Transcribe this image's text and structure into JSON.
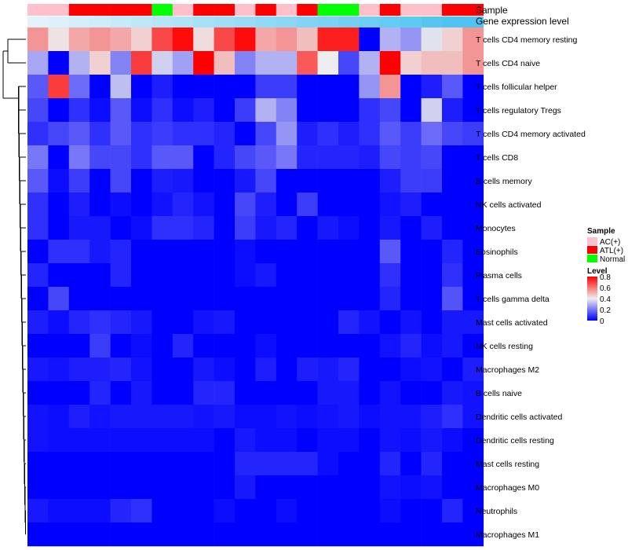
{
  "chart_data": {
    "type": "heatmap",
    "title": "",
    "annotation_labels": [
      "Sample",
      "Gene expression level"
    ],
    "sample_groups": [
      "AC(+)",
      "AC(+)",
      "ATL(+)",
      "ATL(+)",
      "ATL(+)",
      "ATL(+)",
      "Normal",
      "AC(+)",
      "ATL(+)",
      "ATL(+)",
      "AC(+)",
      "ATL(+)",
      "AC(+)",
      "ATL(+)",
      "Normal",
      "Normal",
      "AC(+)",
      "ATL(+)",
      "AC(+)",
      "AC(+)",
      "ATL(+)",
      "ATL(+)"
    ],
    "gene_expression_level": [
      0.0,
      0.05,
      0.1,
      0.15,
      0.2,
      0.25,
      0.3,
      0.35,
      0.4,
      0.45,
      0.5,
      0.55,
      0.6,
      0.65,
      0.7,
      0.75,
      0.8,
      0.85,
      0.9,
      0.95,
      1.0,
      1.0
    ],
    "rows": [
      "T cells CD4 memory resting",
      "T cells CD4 naive",
      "T cells follicular helper",
      "T cells regulatory  Tregs",
      "T cells CD4 memory activated",
      "T cells CD8",
      "B cells memory",
      "NK cells activated",
      "Monocytes",
      "Eosinophils",
      "Plasma cells",
      "T cells gamma delta",
      "Mast cells activated",
      "NK cells resting",
      "Macrophages M2",
      "B cells naive",
      "Dendritic cells activated",
      "Dendritic cells resting",
      "Mast cells resting",
      "Macrophages M0",
      "Neutrophils",
      "Macrophages M1"
    ],
    "values": [
      [
        0.55,
        0.42,
        0.52,
        0.55,
        0.52,
        0.45,
        0.68,
        0.78,
        0.43,
        0.68,
        0.78,
        0.52,
        0.55,
        0.48,
        0.75,
        0.75,
        0.0,
        0.3,
        0.25,
        0.38,
        0.45,
        0.55
      ],
      [
        0.28,
        0.0,
        0.3,
        0.45,
        0.22,
        0.7,
        0.35,
        0.27,
        0.8,
        0.48,
        0.22,
        0.3,
        0.3,
        0.65,
        0.4,
        0.12,
        0.3,
        0.8,
        0.45,
        0.48,
        0.48,
        0.55
      ],
      [
        0.15,
        0.7,
        0.18,
        0.0,
        0.32,
        0.0,
        0.05,
        0.0,
        0.0,
        0.0,
        0.0,
        0.1,
        0.1,
        0.0,
        0.0,
        0.0,
        0.25,
        0.55,
        0.0,
        0.05,
        0.15,
        0.0
      ],
      [
        0.12,
        0.0,
        0.08,
        0.02,
        0.15,
        0.02,
        0.08,
        0.02,
        0.05,
        0.0,
        0.1,
        0.3,
        0.22,
        0.0,
        0.0,
        0.0,
        0.08,
        0.12,
        0.0,
        0.35,
        0.05,
        0.0
      ],
      [
        0.08,
        0.12,
        0.15,
        0.08,
        0.15,
        0.08,
        0.1,
        0.08,
        0.08,
        0.06,
        0.0,
        0.12,
        0.25,
        0.05,
        0.08,
        0.05,
        0.08,
        0.15,
        0.1,
        0.18,
        0.12,
        0.1
      ],
      [
        0.2,
        0.0,
        0.2,
        0.12,
        0.12,
        0.08,
        0.15,
        0.15,
        0.0,
        0.06,
        0.12,
        0.15,
        0.2,
        0.06,
        0.06,
        0.06,
        0.05,
        0.12,
        0.1,
        0.12,
        0.0,
        0.0
      ],
      [
        0.15,
        0.02,
        0.1,
        0.0,
        0.12,
        0.0,
        0.05,
        0.04,
        0.0,
        0.0,
        0.04,
        0.12,
        0.0,
        0.0,
        0.0,
        0.0,
        0.0,
        0.05,
        0.1,
        0.1,
        0.0,
        0.0
      ],
      [
        0.08,
        0.0,
        0.05,
        0.0,
        0.02,
        0.0,
        0.03,
        0.06,
        0.03,
        0.0,
        0.12,
        0.05,
        0.0,
        0.1,
        0.0,
        0.0,
        0.0,
        0.03,
        0.05,
        0.0,
        0.0,
        0.0
      ],
      [
        0.08,
        0.0,
        0.04,
        0.04,
        0.0,
        0.02,
        0.08,
        0.08,
        0.06,
        0.0,
        0.1,
        0.04,
        0.06,
        0.0,
        0.04,
        0.02,
        0.0,
        0.04,
        0.0,
        0.05,
        0.0,
        0.0
      ],
      [
        0.0,
        0.08,
        0.08,
        0.04,
        0.06,
        0.0,
        0.0,
        0.0,
        0.0,
        0.0,
        0.02,
        0.0,
        0.0,
        0.0,
        0.0,
        0.0,
        0.0,
        0.15,
        0.0,
        0.0,
        0.06,
        0.0
      ],
      [
        0.06,
        0.0,
        0.0,
        0.0,
        0.06,
        0.0,
        0.0,
        0.0,
        0.0,
        0.0,
        0.02,
        0.04,
        0.0,
        0.0,
        0.0,
        0.0,
        0.0,
        0.08,
        0.0,
        0.0,
        0.08,
        0.0
      ],
      [
        0.0,
        0.12,
        0.0,
        0.0,
        0.0,
        0.0,
        0.0,
        0.0,
        0.0,
        0.0,
        0.0,
        0.0,
        0.0,
        0.0,
        0.0,
        0.0,
        0.0,
        0.06,
        0.0,
        0.0,
        0.14,
        0.0
      ],
      [
        0.05,
        0.02,
        0.06,
        0.08,
        0.06,
        0.04,
        0.0,
        0.0,
        0.03,
        0.04,
        0.0,
        0.0,
        0.0,
        0.0,
        0.0,
        0.06,
        0.03,
        0.0,
        0.03,
        0.0,
        0.04,
        0.04
      ],
      [
        0.0,
        0.0,
        0.0,
        0.1,
        0.0,
        0.02,
        0.0,
        0.06,
        0.0,
        0.0,
        0.0,
        0.02,
        0.0,
        0.0,
        0.0,
        0.0,
        0.0,
        0.03,
        0.06,
        0.02,
        0.04,
        0.0
      ],
      [
        0.04,
        0.03,
        0.05,
        0.05,
        0.06,
        0.03,
        0.0,
        0.0,
        0.04,
        0.02,
        0.0,
        0.05,
        0.0,
        0.05,
        0.04,
        0.06,
        0.0,
        0.0,
        0.02,
        0.03,
        0.0,
        0.05
      ],
      [
        0.0,
        0.0,
        0.0,
        0.06,
        0.0,
        0.04,
        0.0,
        0.0,
        0.06,
        0.06,
        0.0,
        0.0,
        0.0,
        0.0,
        0.04,
        0.04,
        0.0,
        0.03,
        0.0,
        0.0,
        0.04,
        0.03
      ],
      [
        0.03,
        0.02,
        0.05,
        0.03,
        0.04,
        0.04,
        0.04,
        0.04,
        0.03,
        0.04,
        0.02,
        0.02,
        0.03,
        0.02,
        0.03,
        0.04,
        0.02,
        0.03,
        0.03,
        0.05,
        0.08,
        0.03
      ],
      [
        0.03,
        0.02,
        0.02,
        0.02,
        0.02,
        0.02,
        0.02,
        0.02,
        0.02,
        0.0,
        0.04,
        0.02,
        0.02,
        0.0,
        0.02,
        0.02,
        0.0,
        0.03,
        0.02,
        0.04,
        0.02,
        0.0
      ],
      [
        0.0,
        0.0,
        0.0,
        0.0,
        0.0,
        0.0,
        0.0,
        0.0,
        0.0,
        0.0,
        0.06,
        0.06,
        0.06,
        0.06,
        0.02,
        0.0,
        0.0,
        0.06,
        0.0,
        0.06,
        0.0,
        0.0
      ],
      [
        0.0,
        0.0,
        0.0,
        0.0,
        0.0,
        0.0,
        0.0,
        0.0,
        0.0,
        0.0,
        0.04,
        0.0,
        0.0,
        0.0,
        0.0,
        0.0,
        0.0,
        0.03,
        0.02,
        0.03,
        0.0,
        0.0
      ],
      [
        0.04,
        0.02,
        0.02,
        0.02,
        0.06,
        0.08,
        0.0,
        0.0,
        0.0,
        0.02,
        0.0,
        0.0,
        0.02,
        0.0,
        0.0,
        0.0,
        0.0,
        0.02,
        0.0,
        0.0,
        0.06,
        0.0
      ],
      [
        0.0,
        0.0,
        0.0,
        0.0,
        0.0,
        0.0,
        0.0,
        0.0,
        0.0,
        0.0,
        0.0,
        0.0,
        0.0,
        0.0,
        0.0,
        0.0,
        0.0,
        0.0,
        0.0,
        0.0,
        0.0,
        0.0
      ]
    ],
    "color_scale": {
      "min": 0,
      "max": 0.8,
      "stops": [
        {
          "value": 0,
          "color": "#0000ff"
        },
        {
          "value": 0.4,
          "color": "#eeeeee"
        },
        {
          "value": 0.8,
          "color": "#ff0000"
        }
      ]
    },
    "legend": {
      "sample_title": "Sample",
      "sample_items": [
        {
          "label": "AC(+)",
          "color": "#ffc0cb"
        },
        {
          "label": "ATL(+)",
          "color": "#ff0000"
        },
        {
          "label": "Normal",
          "color": "#00ff00"
        }
      ],
      "level_title": "Level",
      "level_ticks": [
        "0.8",
        "0.6",
        "0.4",
        "0.2",
        "0"
      ],
      "level_tick_values": [
        0.8,
        0.6,
        0.4,
        0.2,
        0
      ]
    },
    "expression_bar_colors": [
      "#e4f3fb",
      "#4fc4f0"
    ],
    "dendrogram": "row clustering (hierarchical) shown on left"
  }
}
